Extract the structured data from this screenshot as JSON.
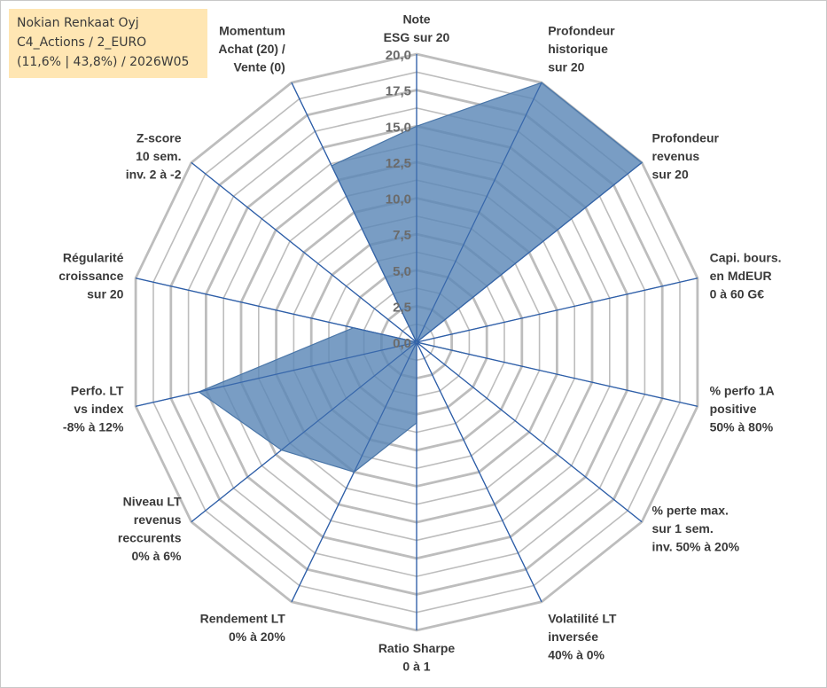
{
  "title": {
    "line1": "Nokian Renkaat Oyj",
    "line2": "C4_Actions / 2_EURO",
    "line3": "(11,6% | 43,8%) / 2026W05"
  },
  "chart_data": {
    "type": "radar",
    "r_range": [
      0,
      20
    ],
    "ticks": [
      "0,0",
      "2,5",
      "5,0",
      "7,5",
      "10,0",
      "12,5",
      "15,0",
      "17,5",
      "20,0"
    ],
    "gridlines": true,
    "axes": [
      {
        "key": "esg",
        "label": [
          "Note",
          "ESG sur 20"
        ]
      },
      {
        "key": "prof_hist",
        "label": [
          "Profondeur",
          "historique",
          "sur 20"
        ]
      },
      {
        "key": "prof_rev",
        "label": [
          "Profondeur",
          "revenus",
          "sur 20"
        ]
      },
      {
        "key": "capi",
        "label": [
          "Capi. bours.",
          "en MdEUR",
          "0 à 60 G€"
        ]
      },
      {
        "key": "perf1a",
        "label": [
          "% perfo 1A",
          "positive",
          "50% à 80%"
        ]
      },
      {
        "key": "perte",
        "label": [
          "% perte max.",
          "sur 1 sem.",
          "inv. 50% à 20%"
        ]
      },
      {
        "key": "vol",
        "label": [
          "Volatilité LT",
          "inversée",
          "40% à 0%"
        ]
      },
      {
        "key": "sharpe",
        "label": [
          "Ratio Sharpe",
          "0 à 1"
        ]
      },
      {
        "key": "rdt",
        "label": [
          "Rendement LT",
          "0% à 20%"
        ]
      },
      {
        "key": "niveau_rev",
        "label": [
          "Niveau LT",
          "revenus",
          "reccurents",
          "0% à 6%"
        ]
      },
      {
        "key": "perfo_lt",
        "label": [
          "Perfo. LT",
          "vs index",
          "-8% à 12%"
        ]
      },
      {
        "key": "regularite",
        "label": [
          "Régularité",
          "croissance",
          "sur 20"
        ]
      },
      {
        "key": "zscore",
        "label": [
          "Z-score",
          "10 sem.",
          "inv. 2 à -2"
        ]
      },
      {
        "key": "momentum",
        "label": [
          "Momentum",
          "Achat (20) /",
          "Vente (0)"
        ]
      }
    ],
    "series": [
      {
        "name": "Nokian Renkaat Oyj",
        "color": "#5b87b7",
        "values": [
          15.0,
          20.0,
          20.0,
          0.0,
          3.2,
          0.0,
          0.0,
          5.6,
          10.0,
          12.0,
          15.5,
          4.5,
          0.0,
          13.6
        ]
      }
    ]
  },
  "colors": {
    "grid": "#bdbdbd",
    "spoke": "#2f5fa8",
    "fill": "#5b87b7",
    "title_bg": "#ffe6b3"
  }
}
